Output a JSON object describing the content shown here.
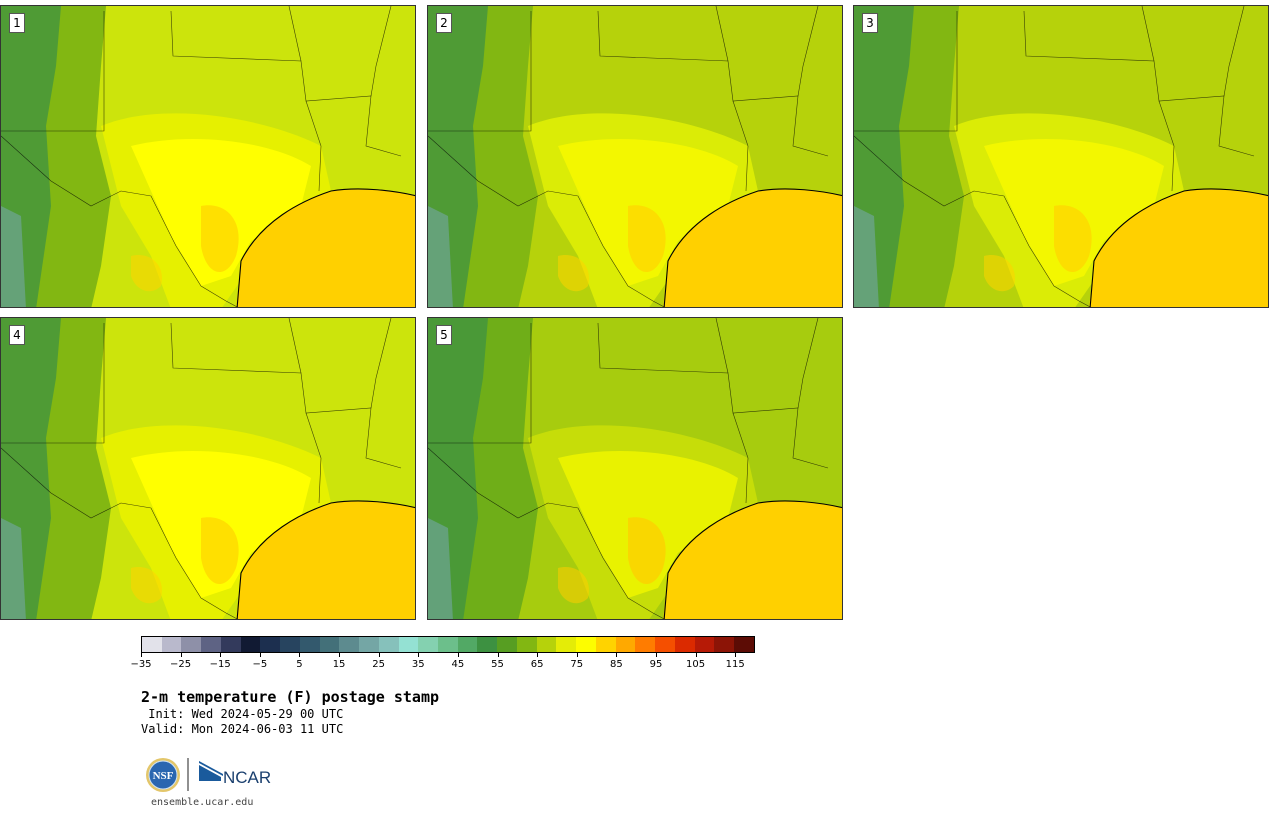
{
  "panels": [
    {
      "label": "1",
      "variant": "warm"
    },
    {
      "label": "2",
      "variant": "mild"
    },
    {
      "label": "3",
      "variant": "mild"
    },
    {
      "label": "4",
      "variant": "warm"
    },
    {
      "label": "5",
      "variant": "cool"
    }
  ],
  "colorbar": {
    "colors": [
      "#e2e2ea",
      "#b9b9cc",
      "#8e90a8",
      "#5e6384",
      "#333a5c",
      "#111a33",
      "#1c2f4f",
      "#27445f",
      "#33596d",
      "#437079",
      "#5d8b8f",
      "#74a6a5",
      "#86c1bb",
      "#94e1d3",
      "#84d1b0",
      "#6cbf8b",
      "#52a965",
      "#3d9141",
      "#579e22",
      "#82b712",
      "#b6d20b",
      "#e4ec07",
      "#fdfd00",
      "#ffd300",
      "#ffa900",
      "#ff7c00",
      "#f54f00",
      "#db2a00",
      "#b61a06",
      "#8c1406",
      "#5c0c05"
    ],
    "tick_labels": [
      "−35",
      "−25",
      "−15",
      "−5",
      "5",
      "15",
      "25",
      "35",
      "45",
      "55",
      "65",
      "75",
      "85",
      "95",
      "105",
      "115"
    ]
  },
  "title": "2-m temperature (F) postage stamp",
  "init": " Init: Wed 2024-05-29 00 UTC",
  "valid": "Valid: Mon 2024-06-03 11 UTC",
  "logos": {
    "nsf": "NSF",
    "ncar": "NCAR"
  },
  "url": "ensemble.ucar.edu"
}
